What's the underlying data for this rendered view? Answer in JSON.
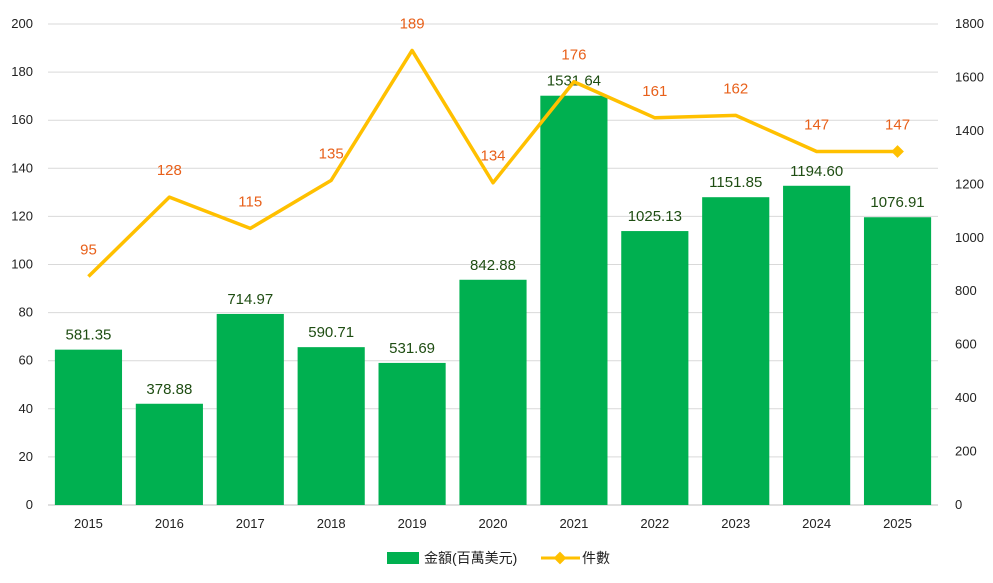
{
  "chart_data": {
    "type": "bar",
    "categories": [
      "2015",
      "2016",
      "2017",
      "2018",
      "2019",
      "2020",
      "2021",
      "2022",
      "2023",
      "2024",
      "2025"
    ],
    "series": [
      {
        "name": "金額(百萬美元)",
        "type": "bar",
        "axis": "right",
        "color": "#00b050",
        "values": [
          581.35,
          378.88,
          714.97,
          590.71,
          531.69,
          842.88,
          1531.64,
          1025.13,
          1151.85,
          1194.6,
          1076.91
        ],
        "labels": [
          "581.35",
          "378.88",
          "714.97",
          "590.71",
          "531.69",
          "842.88",
          "1531.64",
          "1025.13",
          "1151.85",
          "1194.60",
          "1076.91"
        ]
      },
      {
        "name": "件數",
        "type": "line",
        "axis": "left",
        "color": "#ffc000",
        "label_color": "#e8601a",
        "values": [
          95,
          128,
          115,
          135,
          189,
          134,
          176,
          161,
          162,
          147,
          147
        ],
        "labels": [
          "95",
          "128",
          "115",
          "135",
          "189",
          "134",
          "176",
          "161",
          "162",
          "147",
          "147"
        ]
      }
    ],
    "y_left": {
      "min": 0,
      "max": 200,
      "ticks": [
        "0",
        "20",
        "40",
        "60",
        "80",
        "100",
        "120",
        "140",
        "160",
        "180",
        "200"
      ]
    },
    "y_right": {
      "min": 0,
      "max": 1800,
      "ticks": [
        "0",
        "200",
        "400",
        "600",
        "800",
        "1000",
        "1200",
        "1400",
        "1600",
        "1800"
      ]
    },
    "grid": true,
    "legend_position": "bottom"
  }
}
